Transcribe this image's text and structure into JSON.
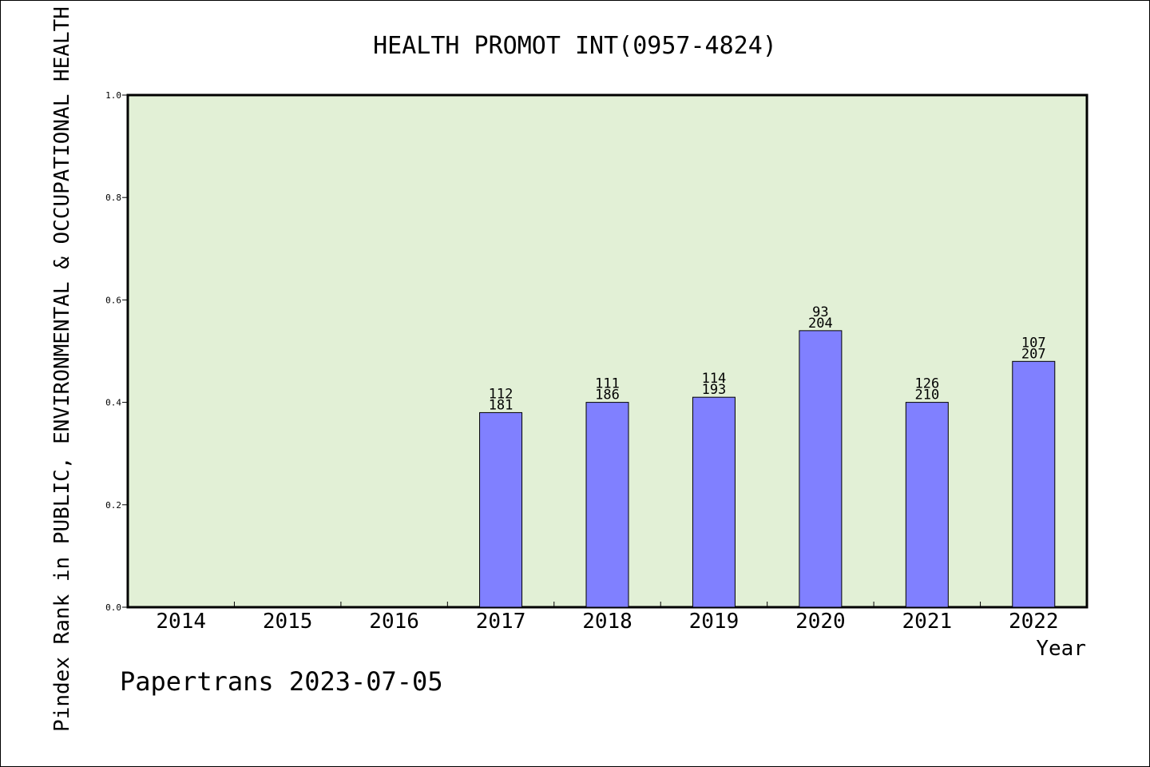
{
  "chart_data": {
    "type": "bar",
    "title": "HEALTH PROMOT INT(0957-4824)",
    "xlabel": "Year",
    "ylabel": "Pindex Rank in PUBLIC, ENVIRONMENTAL & OCCUPATIONAL HEALTH",
    "ylim": [
      0,
      1.0
    ],
    "yticks": [
      "0.0",
      "0.2",
      "0.4",
      "0.6",
      "0.8",
      "1.0"
    ],
    "categories": [
      "2014",
      "2015",
      "2016",
      "2017",
      "2018",
      "2019",
      "2020",
      "2021",
      "2022"
    ],
    "values": [
      null,
      null,
      null,
      0.38,
      0.4,
      0.41,
      0.54,
      0.4,
      0.48
    ],
    "labels_top": [
      null,
      null,
      null,
      "112",
      "111",
      "114",
      "93",
      "126",
      "107"
    ],
    "labels_bottom": [
      null,
      null,
      null,
      "181",
      "186",
      "193",
      "204",
      "210",
      "207"
    ],
    "grid": false,
    "colors": {
      "bar": "#8080ff",
      "plot_bg": "#e2f0d6"
    }
  },
  "footer": "Papertrans 2023-07-05"
}
